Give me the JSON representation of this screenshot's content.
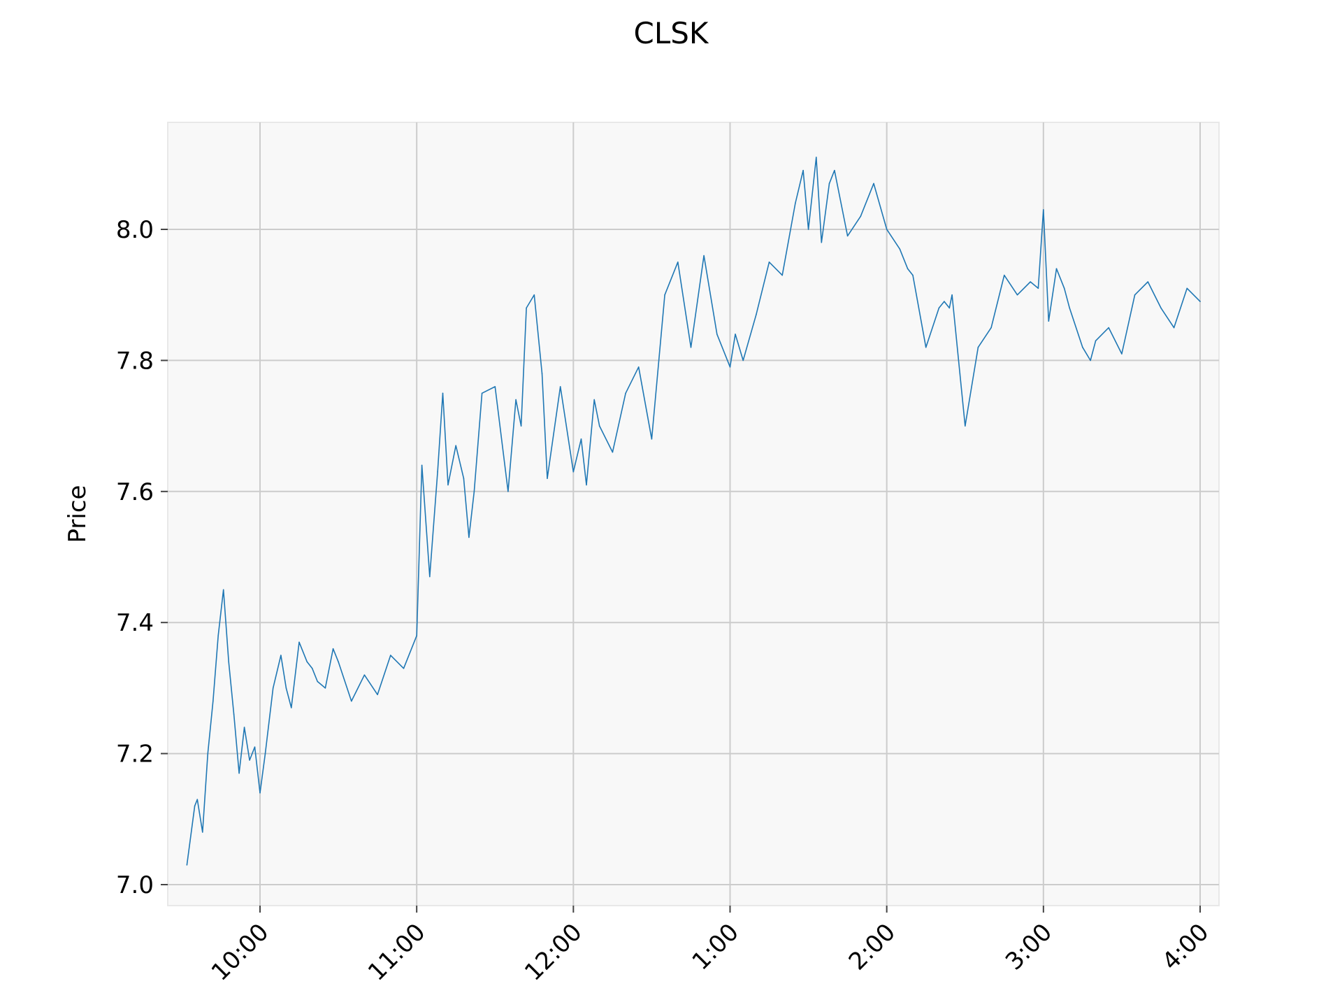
{
  "chart_data": {
    "type": "line",
    "title": "CLSK",
    "xlabel": "",
    "ylabel": "Price",
    "grid": true,
    "xlim": [
      "9:30",
      "4:00"
    ],
    "ylim": [
      6.98,
      8.17
    ],
    "x_ticks": [
      "10:00",
      "11:00",
      "12:00",
      "1:00",
      "2:00",
      "3:00",
      "4:00"
    ],
    "y_ticks": [
      "7.0",
      "7.2",
      "7.4",
      "7.6",
      "7.8",
      "8.0"
    ],
    "colors": {
      "line": "#1f77b4",
      "plot_background": "#f8f8f8",
      "grid": "#cccccc"
    },
    "series": [
      {
        "x": [
          "9:32",
          "9:35",
          "9:36",
          "9:38",
          "9:40",
          "9:42",
          "9:44",
          "9:46",
          "9:48",
          "9:50",
          "9:52",
          "9:54",
          "9:56",
          "9:58",
          "10:00",
          "10:02",
          "10:05",
          "10:08",
          "10:10",
          "10:12",
          "10:15",
          "10:18",
          "10:20",
          "10:22",
          "10:25",
          "10:28",
          "10:30",
          "10:35",
          "10:40",
          "10:45",
          "10:50",
          "10:55",
          "11:00",
          "11:02",
          "11:05",
          "11:08",
          "11:10",
          "11:12",
          "11:15",
          "11:18",
          "11:20",
          "11:22",
          "11:25",
          "11:30",
          "11:35",
          "11:38",
          "11:40",
          "11:42",
          "11:45",
          "11:48",
          "11:50",
          "11:55",
          "12:00",
          "12:03",
          "12:05",
          "12:08",
          "12:10",
          "12:15",
          "12:20",
          "12:25",
          "12:30",
          "12:35",
          "12:40",
          "12:45",
          "12:50",
          "12:55",
          "1:00",
          "1:02",
          "1:05",
          "1:10",
          "1:15",
          "1:20",
          "1:25",
          "1:28",
          "1:30",
          "1:33",
          "1:35",
          "1:38",
          "1:40",
          "1:45",
          "1:50",
          "1:55",
          "2:00",
          "2:05",
          "2:08",
          "2:10",
          "2:15",
          "2:20",
          "2:22",
          "2:24",
          "2:25",
          "2:28",
          "2:30",
          "2:35",
          "2:40",
          "2:45",
          "2:50",
          "2:55",
          "2:58",
          "3:00",
          "3:02",
          "3:05",
          "3:08",
          "3:10",
          "3:15",
          "3:18",
          "3:20",
          "3:25",
          "3:30",
          "3:35",
          "3:40",
          "3:45",
          "3:50",
          "3:55",
          "4:00"
        ],
        "values": [
          7.03,
          7.12,
          7.13,
          7.08,
          7.2,
          7.28,
          7.38,
          7.45,
          7.34,
          7.26,
          7.17,
          7.24,
          7.19,
          7.21,
          7.14,
          7.2,
          7.3,
          7.35,
          7.3,
          7.27,
          7.37,
          7.34,
          7.33,
          7.31,
          7.3,
          7.36,
          7.34,
          7.28,
          7.32,
          7.29,
          7.35,
          7.33,
          7.38,
          7.64,
          7.47,
          7.63,
          7.75,
          7.61,
          7.67,
          7.62,
          7.53,
          7.6,
          7.75,
          7.76,
          7.6,
          7.74,
          7.7,
          7.88,
          7.9,
          7.78,
          7.62,
          7.76,
          7.63,
          7.68,
          7.61,
          7.74,
          7.7,
          7.66,
          7.75,
          7.79,
          7.68,
          7.9,
          7.95,
          7.82,
          7.96,
          7.84,
          7.79,
          7.84,
          7.8,
          7.87,
          7.95,
          7.93,
          8.04,
          8.09,
          8.0,
          8.11,
          7.98,
          8.07,
          8.09,
          7.99,
          8.02,
          8.07,
          8.0,
          7.97,
          7.94,
          7.93,
          7.82,
          7.88,
          7.89,
          7.88,
          7.9,
          7.78,
          7.7,
          7.82,
          7.85,
          7.93,
          7.9,
          7.92,
          7.91,
          8.03,
          7.86,
          7.94,
          7.91,
          7.88,
          7.82,
          7.8,
          7.83,
          7.85,
          7.81,
          7.9,
          7.92,
          7.88,
          7.85,
          7.91,
          7.89
        ]
      }
    ]
  }
}
